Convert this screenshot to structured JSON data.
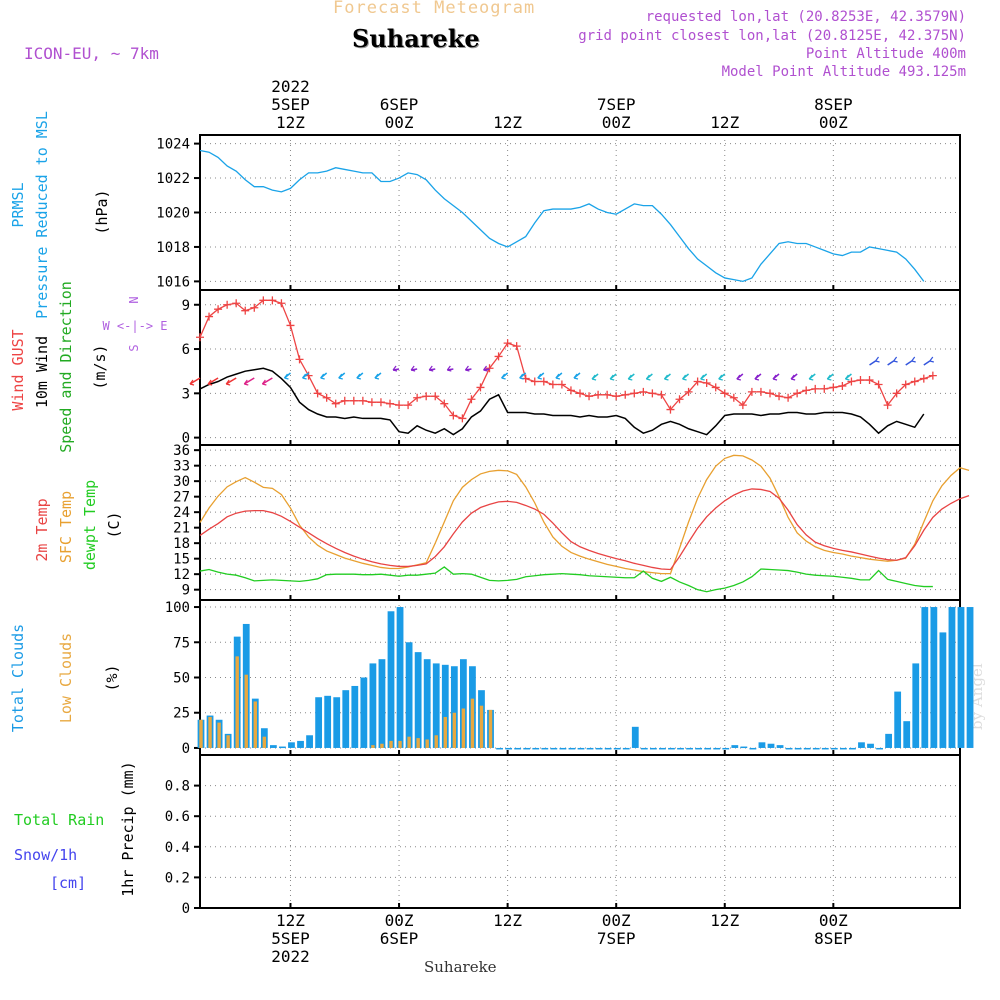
{
  "header": {
    "subtitle": "Forecast Meteogram",
    "location": "Suhareke",
    "model": "ICON-EU, ~ 7km",
    "requested": "requested lon,lat (20.8253E, 42.3579N)",
    "grid_point": "grid point closest lon,lat (20.8125E, 42.375N)",
    "point_altitude": "Point Altitude 400m",
    "model_altitude": "Model Point Altitude 493.125m",
    "credit": "by Angel",
    "footer_location": "Suhareke"
  },
  "colors": {
    "pressure": "#1aa3e8",
    "gust": "#ee4444",
    "wind": "#000000",
    "temp2m": "#e84444",
    "sfc": "#e8a030",
    "dewpt": "#22cc22",
    "total_cloud": "#1a9be6",
    "low_cloud": "#e8a840",
    "direction_label": "#22aa22",
    "compass": "#b060e0",
    "snow_label": "#4444ee",
    "header_purple": "#b050d0",
    "header_orange": "#f0c080"
  },
  "time_axis": {
    "top_ticks": [
      {
        "t": 12,
        "lines": [
          "2022",
          "5SEP",
          "12Z"
        ]
      },
      {
        "t": 24,
        "lines": [
          "6SEP",
          "00Z"
        ]
      },
      {
        "t": 36,
        "lines": [
          "12Z"
        ]
      },
      {
        "t": 48,
        "lines": [
          "7SEP",
          "00Z"
        ]
      },
      {
        "t": 60,
        "lines": [
          "12Z"
        ]
      },
      {
        "t": 72,
        "lines": [
          "8SEP",
          "00Z"
        ]
      }
    ],
    "bottom_ticks": [
      {
        "t": 12,
        "lines": [
          "12Z",
          "5SEP",
          "2022"
        ]
      },
      {
        "t": 24,
        "lines": [
          "00Z",
          "6SEP"
        ]
      },
      {
        "t": 36,
        "lines": [
          "12Z"
        ]
      },
      {
        "t": 48,
        "lines": [
          "00Z",
          "7SEP"
        ]
      },
      {
        "t": 60,
        "lines": [
          "12Z"
        ]
      },
      {
        "t": 72,
        "lines": [
          "00Z",
          "8SEP"
        ]
      }
    ]
  },
  "chart_data": [
    {
      "type": "line",
      "ylabel_lines": [
        "PRMSL",
        "Pressure Reduced to MSL"
      ],
      "unit": "(hPa)",
      "ylim": [
        1015.5,
        1024.5
      ],
      "yticks": [
        1016,
        1018,
        1020,
        1022,
        1024
      ],
      "grid": true,
      "series": [
        {
          "name": "PRMSL",
          "values": [
            1023.6,
            1023.5,
            1023.2,
            1022.7,
            1022.4,
            1021.9,
            1021.5,
            1021.5,
            1021.3,
            1021.2,
            1021.4,
            1021.9,
            1022.3,
            1022.3,
            1022.4,
            1022.6,
            1022.5,
            1022.4,
            1022.3,
            1022.3,
            1021.8,
            1021.8,
            1022.0,
            1022.3,
            1022.2,
            1021.9,
            1021.3,
            1020.8,
            1020.4,
            1020.0,
            1019.5,
            1019.0,
            1018.5,
            1018.2,
            1018.0,
            1018.3,
            1018.6,
            1019.4,
            1020.1,
            1020.2,
            1020.2,
            1020.2,
            1020.3,
            1020.5,
            1020.2,
            1020.0,
            1019.9,
            1020.2,
            1020.5,
            1020.4,
            1020.4,
            1019.9,
            1019.3,
            1018.6,
            1017.9,
            1017.3,
            1016.9,
            1016.5,
            1016.2,
            1016.1,
            1016.0,
            1016.2,
            1017.0,
            1017.6,
            1018.2,
            1018.3,
            1018.2,
            1018.2,
            1018.0,
            1017.8,
            1017.6,
            1017.5,
            1017.7,
            1017.7,
            1018.0,
            1017.9,
            1017.8,
            1017.7,
            1017.3,
            1016.7,
            1016.0
          ]
        }
      ]
    },
    {
      "type": "line",
      "ylabel_lines": [
        "Wind GUST",
        "10m Wind",
        "Speed and Direction"
      ],
      "unit": "(m/s)",
      "compass": [
        "N",
        "W <-|-> E",
        "S"
      ],
      "ylim": [
        -0.5,
        10
      ],
      "yticks": [
        0,
        3,
        6,
        9
      ],
      "grid": true,
      "series": [
        {
          "name": "Wind GUST",
          "values": [
            6.8,
            8.2,
            8.7,
            9.0,
            9.1,
            8.6,
            8.8,
            9.3,
            9.3,
            9.1,
            7.6,
            5.3,
            4.2,
            3.0,
            2.7,
            2.3,
            2.5,
            2.5,
            2.5,
            2.4,
            2.4,
            2.3,
            2.2,
            2.2,
            2.7,
            2.8,
            2.8,
            2.3,
            1.5,
            1.3,
            2.6,
            3.4,
            4.7,
            5.5,
            6.4,
            6.2,
            4.0,
            3.8,
            3.8,
            3.6,
            3.6,
            3.2,
            3.0,
            2.8,
            2.9,
            2.9,
            2.8,
            2.9,
            3.0,
            3.1,
            3.0,
            2.9,
            1.9,
            2.6,
            3.1,
            3.8,
            3.7,
            3.4,
            3.0,
            2.7,
            2.2,
            3.1,
            3.1,
            3.0,
            2.8,
            2.7,
            3.0,
            3.2,
            3.3,
            3.3,
            3.4,
            3.5,
            3.8,
            3.9,
            3.9,
            3.6,
            2.2,
            3.0,
            3.6,
            3.8,
            4.0,
            4.2
          ]
        },
        {
          "name": "10m Wind",
          "values": [
            3.3,
            3.6,
            3.8,
            4.1,
            4.3,
            4.5,
            4.6,
            4.7,
            4.5,
            4.0,
            3.4,
            2.4,
            1.9,
            1.6,
            1.4,
            1.4,
            1.3,
            1.4,
            1.3,
            1.3,
            1.3,
            1.2,
            0.4,
            0.3,
            0.8,
            0.5,
            0.3,
            0.6,
            0.2,
            0.6,
            1.4,
            1.8,
            2.6,
            2.9,
            1.7,
            1.7,
            1.7,
            1.6,
            1.6,
            1.5,
            1.5,
            1.5,
            1.4,
            1.5,
            1.4,
            1.4,
            1.5,
            1.3,
            0.7,
            0.3,
            0.5,
            0.9,
            1.1,
            0.9,
            0.6,
            0.4,
            0.2,
            0.8,
            1.5,
            1.6,
            1.6,
            1.6,
            1.5,
            1.6,
            1.6,
            1.7,
            1.7,
            1.6,
            1.6,
            1.7,
            1.7,
            1.7,
            1.6,
            1.4,
            0.9,
            0.3,
            0.8,
            1.1,
            0.9,
            0.7,
            1.6
          ]
        }
      ]
    },
    {
      "type": "line",
      "ylabel_lines": [
        "2m Temp",
        "SFC Temp",
        "dewpt Temp"
      ],
      "unit": "(C)",
      "ylim": [
        7,
        37
      ],
      "yticks": [
        9,
        12,
        15,
        18,
        21,
        24,
        27,
        30,
        33,
        36
      ],
      "grid": true,
      "series": [
        {
          "name": "2m Temp",
          "values": [
            19.5,
            20.7,
            21.8,
            23.1,
            23.8,
            24.2,
            24.3,
            24.3,
            23.9,
            23.2,
            22.2,
            21.1,
            20.0,
            18.9,
            17.9,
            17.0,
            16.2,
            15.5,
            14.9,
            14.4,
            14.0,
            13.7,
            13.5,
            13.5,
            13.7,
            14.0,
            15.4,
            17.3,
            19.8,
            22.1,
            23.8,
            24.9,
            25.5,
            26.0,
            26.1,
            25.9,
            25.3,
            24.6,
            23.6,
            21.9,
            20.0,
            18.3,
            17.3,
            16.6,
            16.0,
            15.5,
            15.0,
            14.6,
            14.1,
            13.7,
            13.3,
            13.0,
            12.9,
            15.4,
            18.2,
            20.9,
            23.1,
            24.8,
            26.2,
            27.3,
            28.1,
            28.5,
            28.4,
            28.0,
            26.7,
            24.4,
            21.6,
            19.6,
            18.2,
            17.5,
            17.0,
            16.6,
            16.3,
            15.9,
            15.5,
            15.1,
            14.8,
            14.7,
            15.2,
            17.5,
            20.5,
            23.0,
            24.6,
            25.7,
            26.6,
            27.2
          ]
        },
        {
          "name": "SFC Temp",
          "values": [
            22.0,
            24.8,
            27.1,
            28.9,
            29.9,
            30.7,
            29.8,
            28.8,
            28.6,
            27.4,
            24.8,
            21.5,
            19.2,
            17.6,
            16.5,
            15.8,
            15.1,
            14.6,
            14.1,
            13.7,
            13.3,
            13.1,
            13.1,
            13.4,
            13.8,
            14.2,
            18.0,
            22.1,
            26.2,
            28.8,
            30.3,
            31.4,
            31.9,
            32.1,
            32.0,
            31.3,
            28.9,
            25.8,
            22.1,
            19.2,
            17.4,
            16.2,
            15.5,
            14.9,
            14.4,
            13.9,
            13.5,
            13.1,
            12.8,
            12.5,
            12.3,
            12.1,
            12.1,
            17.0,
            22.1,
            26.7,
            30.3,
            32.9,
            34.4,
            35.0,
            34.9,
            34.1,
            32.9,
            30.6,
            27.0,
            23.0,
            20.0,
            18.4,
            17.3,
            16.6,
            16.2,
            15.9,
            15.5,
            15.2,
            14.9,
            14.7,
            14.5,
            14.7,
            15.1,
            17.8,
            22.1,
            26.2,
            29.1,
            31.1,
            32.6,
            32.1
          ]
        },
        {
          "name": "dewpt Temp",
          "values": [
            12.6,
            12.9,
            12.4,
            12.0,
            11.8,
            11.3,
            10.7,
            10.8,
            10.9,
            10.8,
            10.7,
            10.6,
            10.8,
            11.1,
            11.9,
            12.0,
            12.0,
            12.0,
            11.9,
            11.9,
            12.0,
            11.8,
            11.6,
            11.8,
            11.8,
            12.0,
            12.2,
            13.4,
            12.0,
            12.1,
            12.0,
            11.4,
            10.8,
            10.7,
            10.8,
            11.0,
            11.5,
            11.7,
            11.9,
            12.0,
            12.1,
            12.0,
            11.9,
            11.7,
            11.6,
            11.5,
            11.4,
            11.3,
            11.3,
            12.6,
            11.2,
            10.6,
            11.4,
            10.5,
            9.8,
            9.0,
            8.6,
            9.0,
            9.3,
            9.8,
            10.5,
            11.5,
            13.0,
            12.9,
            12.8,
            12.7,
            12.4,
            12.0,
            11.8,
            11.7,
            11.6,
            11.4,
            11.2,
            10.9,
            10.9,
            12.7,
            11.0,
            10.6,
            10.2,
            9.8,
            9.6,
            9.6
          ]
        }
      ]
    },
    {
      "type": "bar",
      "ylabel_lines": [
        "Total Clouds",
        "Low Clouds"
      ],
      "unit": "(%)",
      "ylim": [
        -5,
        105
      ],
      "yticks": [
        0,
        25,
        50,
        75,
        100
      ],
      "grid": true,
      "series": [
        {
          "name": "Total Clouds",
          "values": [
            20,
            23,
            20,
            10,
            79,
            88,
            35,
            14,
            2,
            1,
            4,
            5,
            9,
            36,
            37,
            36,
            41,
            44,
            50,
            60,
            63,
            97,
            100,
            75,
            68,
            63,
            60,
            59,
            58,
            63,
            58,
            41,
            27,
            0,
            0,
            0,
            0,
            0,
            0,
            0,
            0,
            0,
            0,
            0,
            0,
            0,
            0,
            0,
            15,
            0,
            0,
            0,
            0,
            0,
            0,
            0,
            0,
            0,
            0,
            2,
            1,
            0,
            4,
            3,
            2,
            0,
            0,
            0,
            0,
            0,
            0,
            0,
            0,
            4,
            3,
            0,
            10,
            40,
            19,
            60,
            100,
            100,
            82,
            100,
            100,
            100
          ]
        },
        {
          "name": "Low Clouds",
          "values": [
            20,
            22,
            18,
            9,
            65,
            52,
            33,
            8,
            0,
            0,
            0,
            0,
            0,
            0,
            0,
            0,
            0,
            0,
            0,
            2,
            3,
            5,
            5,
            8,
            7,
            6,
            9,
            22,
            25,
            28,
            35,
            30,
            27,
            0,
            0,
            0,
            0,
            0,
            0,
            0,
            0,
            0,
            0,
            0,
            0,
            0,
            0,
            0,
            0,
            0,
            0,
            0,
            0,
            0,
            0,
            0,
            0,
            0,
            0,
            0,
            0,
            0,
            0,
            0,
            0,
            0,
            0,
            0,
            0,
            0,
            0,
            0,
            0,
            0,
            0,
            0,
            0,
            0,
            0,
            0,
            0,
            0,
            0,
            0,
            0,
            0
          ]
        }
      ]
    },
    {
      "type": "bar",
      "ylabel_lines": [
        "1hr Precip (mm)"
      ],
      "side_labels": [
        "Total  Rain",
        "Snow/1h",
        "[cm]"
      ],
      "ylim": [
        0,
        1
      ],
      "yticks": [
        0,
        0.2,
        0.4,
        0.6,
        0.8
      ],
      "ytick_labels": [
        "0",
        "0.2",
        "0.4",
        "0.6",
        "0.8"
      ],
      "grid": true,
      "series": [
        {
          "name": "1hr Precip",
          "values": [
            0,
            0,
            0,
            0,
            0,
            0,
            0,
            0,
            0,
            0,
            0,
            0,
            0,
            0,
            0,
            0,
            0,
            0,
            0,
            0,
            0,
            0,
            0,
            0,
            0,
            0,
            0,
            0,
            0,
            0,
            0,
            0,
            0,
            0,
            0,
            0,
            0,
            0,
            0,
            0,
            0,
            0,
            0,
            0,
            0,
            0,
            0,
            0,
            0,
            0,
            0,
            0,
            0,
            0,
            0,
            0,
            0,
            0,
            0,
            0,
            0,
            0,
            0,
            0,
            0,
            0,
            0,
            0,
            0,
            0,
            0,
            0,
            0,
            0,
            0,
            0,
            0,
            0,
            0,
            0,
            0,
            0,
            0,
            0,
            0,
            0
          ]
        }
      ]
    }
  ]
}
